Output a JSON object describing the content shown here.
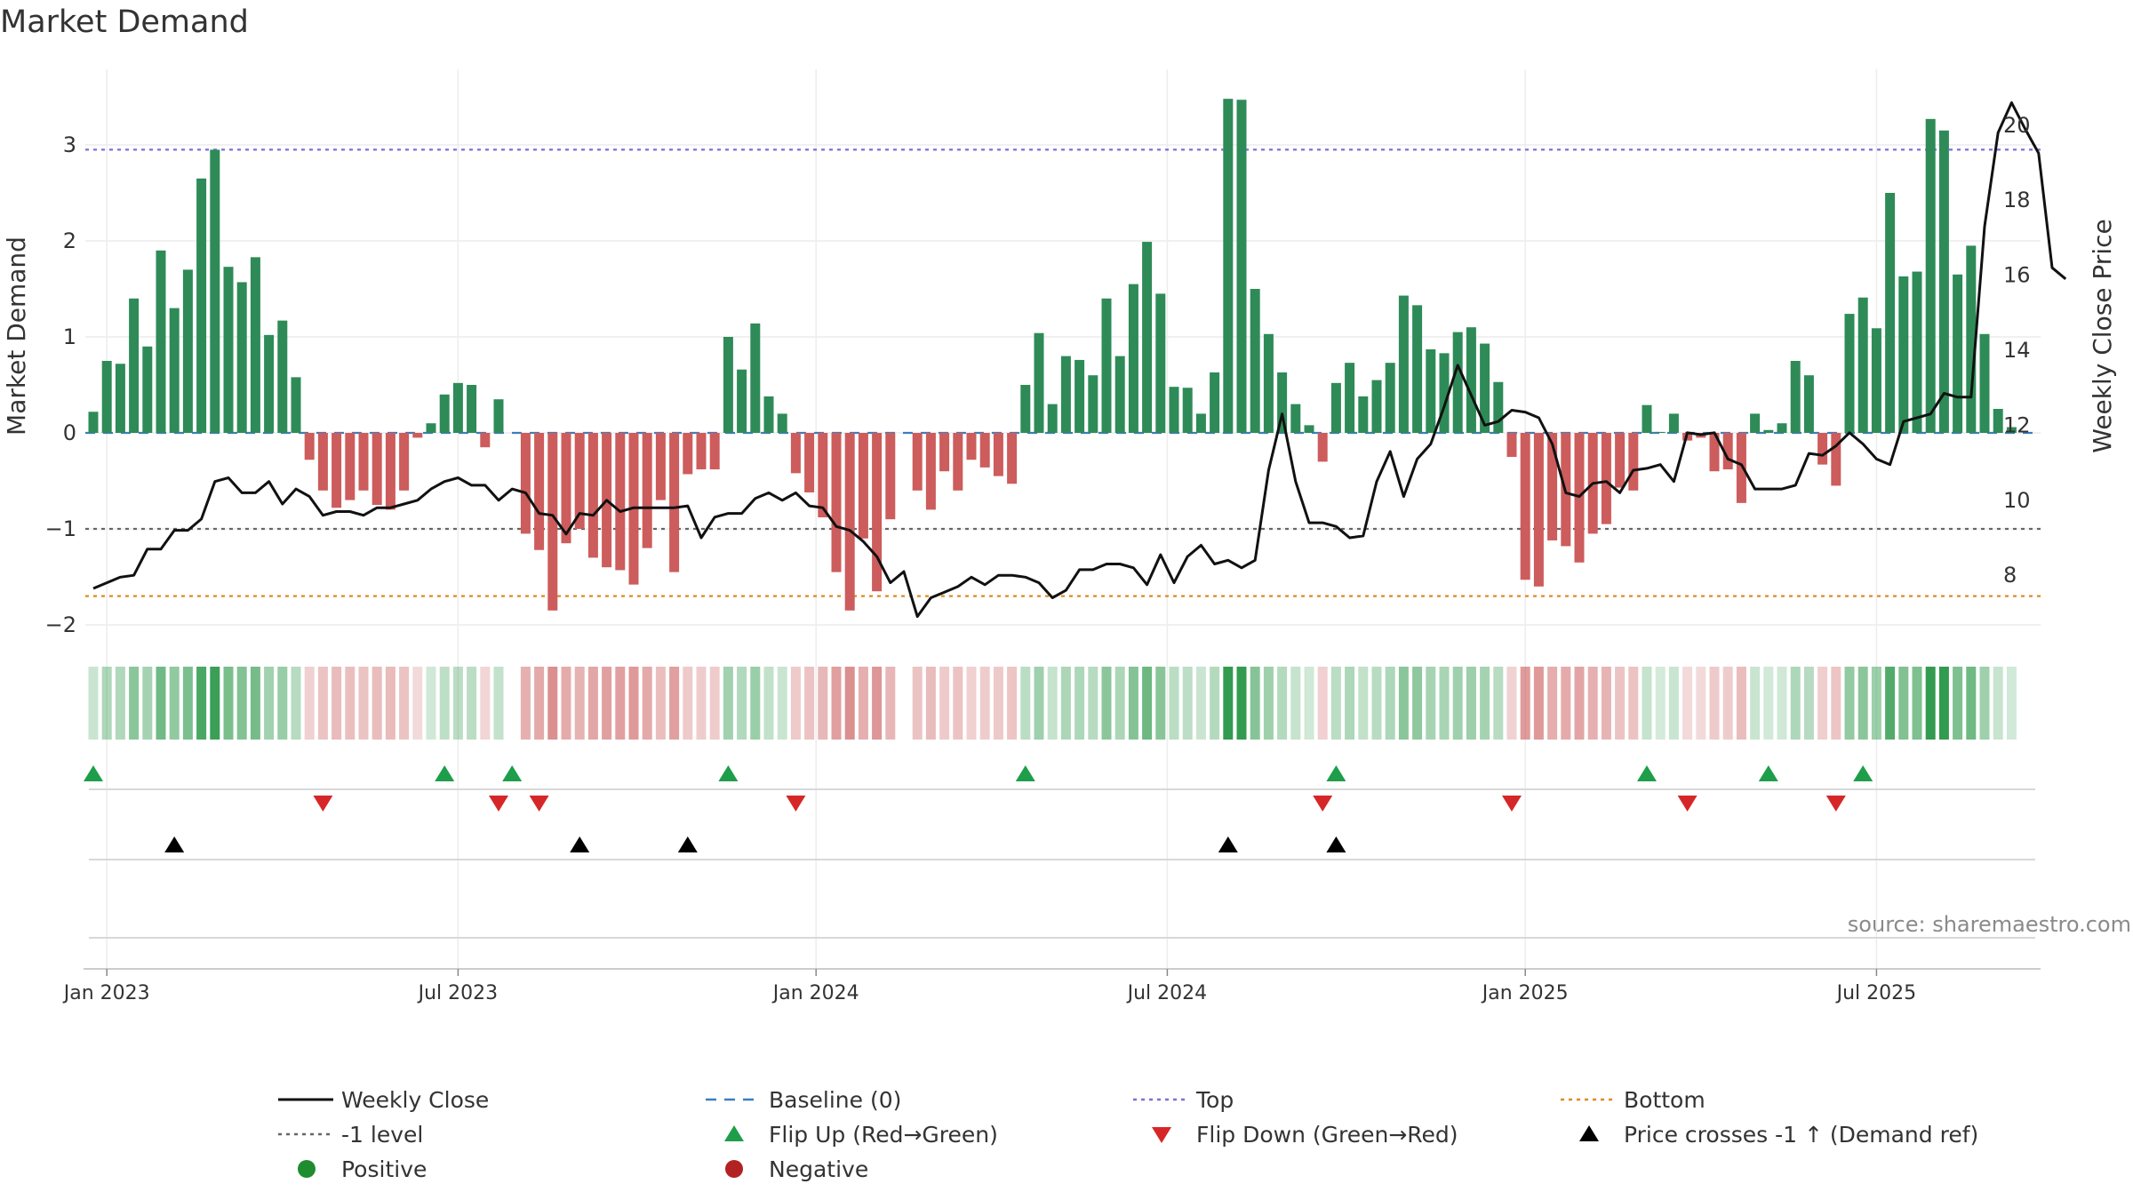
{
  "chart_data": {
    "type": "bar",
    "title": "Market Demand",
    "ylabel": "Market Demand",
    "y2label": "Weekly Close Price",
    "ylim": [
      -2.2,
      3.55
    ],
    "y2lim": [
      6.7,
      21.4
    ],
    "yticks": [
      -2,
      -1,
      0,
      1,
      2,
      3
    ],
    "yticklabels": [
      "−2",
      "−1",
      "0",
      "1",
      "2",
      "3"
    ],
    "y2ticks": [
      8,
      10,
      12,
      14,
      16,
      18,
      20
    ],
    "y2ticklabels": [
      "8",
      "10",
      "12",
      "14",
      "16",
      "18",
      "20"
    ],
    "xticks": [
      {
        "label": "Jan 2023",
        "week": 1
      },
      {
        "label": "Jul 2023",
        "week": 27
      },
      {
        "label": "Jan 2024",
        "week": 53.5
      },
      {
        "label": "Jul 2024",
        "week": 79.5
      },
      {
        "label": "Jan 2025",
        "week": 106
      },
      {
        "label": "Jul 2025",
        "week": 132
      }
    ],
    "reference_lines": {
      "top": 2.95,
      "minus_one_level": -1,
      "bottom": -1.7,
      "baseline": 0
    },
    "series": [
      {
        "name": "Market Demand",
        "values": [
          0.22,
          0.75,
          0.72,
          1.4,
          0.9,
          1.9,
          1.3,
          1.7,
          2.65,
          2.95,
          1.73,
          1.57,
          1.83,
          1.02,
          1.17,
          0.58,
          -0.28,
          -0.6,
          -0.78,
          -0.7,
          -0.6,
          -0.75,
          -0.8,
          -0.6,
          -0.05,
          0.1,
          0.4,
          0.52,
          0.5,
          -0.15,
          0.35,
          0,
          -1.05,
          -1.22,
          -1.85,
          -1.15,
          -1.0,
          -1.3,
          -1.4,
          -1.43,
          -1.58,
          -1.2,
          -0.7,
          -1.45,
          -0.43,
          -0.38,
          -0.38,
          1.0,
          0.66,
          1.14,
          0.38,
          0.2,
          -0.42,
          -0.62,
          -0.88,
          -1.45,
          -1.85,
          -1.1,
          -1.65,
          -0.9,
          0,
          -0.6,
          -0.8,
          -0.4,
          -0.6,
          -0.28,
          -0.36,
          -0.45,
          -0.53,
          0.5,
          1.04,
          0.3,
          0.8,
          0.76,
          0.6,
          1.4,
          0.8,
          1.55,
          1.99,
          1.45,
          0.48,
          0.47,
          0.2,
          0.63,
          3.48,
          3.47,
          1.5,
          1.03,
          0.63,
          0.3,
          0.08,
          -0.3,
          0.52,
          0.73,
          0.38,
          0.55,
          0.73,
          1.43,
          1.33,
          0.87,
          0.83,
          1.05,
          1.1,
          0.93,
          0.53,
          -0.25,
          -1.53,
          -1.6,
          -1.12,
          -1.18,
          -1.35,
          -1.05,
          -0.95,
          -0.57,
          -0.6,
          0.29,
          0.01,
          0.2,
          -0.08,
          -0.05,
          -0.4,
          -0.38,
          -0.73,
          0.2,
          0.03,
          0.1,
          0.75,
          0.6,
          -0.33,
          -0.55,
          1.24,
          1.41,
          1.09,
          2.5,
          1.63,
          1.68,
          3.27,
          3.15,
          1.65,
          1.95,
          1.03,
          0.25,
          0.06
        ]
      },
      {
        "name": "Weekly Close",
        "values": [
          7.65,
          7.8,
          7.95,
          8.0,
          8.7,
          8.7,
          9.2,
          9.2,
          9.5,
          10.5,
          10.6,
          10.2,
          10.2,
          10.5,
          9.9,
          10.3,
          10.1,
          9.6,
          9.7,
          9.7,
          9.6,
          9.8,
          9.8,
          9.9,
          10.0,
          10.3,
          10.5,
          10.6,
          10.4,
          10.4,
          10.0,
          10.3,
          10.2,
          9.65,
          9.6,
          9.1,
          9.65,
          9.6,
          10.0,
          9.7,
          9.8,
          9.8,
          9.8,
          9.8,
          9.85,
          9.0,
          9.55,
          9.65,
          9.65,
          10.05,
          10.2,
          10.0,
          10.2,
          9.85,
          9.8,
          9.3,
          9.2,
          8.9,
          8.5,
          7.8,
          8.1,
          6.9,
          7.4,
          7.55,
          7.7,
          7.95,
          7.75,
          8.0,
          8.0,
          7.95,
          7.8,
          7.4,
          7.6,
          8.15,
          8.15,
          8.3,
          8.3,
          8.2,
          7.75,
          8.55,
          7.8,
          8.5,
          8.8,
          8.3,
          8.4,
          8.2,
          8.4,
          10.8,
          12.3,
          10.5,
          9.4,
          9.4,
          9.3,
          9.0,
          9.05,
          10.5,
          11.3,
          10.1,
          11.1,
          11.5,
          12.5,
          13.6,
          12.8,
          12.0,
          12.1,
          12.4,
          12.35,
          12.2,
          11.5,
          10.2,
          10.1,
          10.45,
          10.5,
          10.2,
          10.8,
          10.85,
          10.95,
          10.5,
          11.8,
          11.75,
          11.8,
          11.1,
          10.95,
          10.3,
          10.3,
          10.3,
          10.4,
          11.25,
          11.2,
          11.45,
          11.8,
          11.5,
          11.1,
          10.95,
          12.1,
          12.2,
          12.3,
          12.85,
          12.75,
          12.75,
          17.3,
          19.8,
          20.6,
          19.9,
          19.25,
          16.2,
          15.9
        ]
      }
    ],
    "band_values": [
      0.22,
      0.75,
      0.72,
      1.4,
      0.9,
      1.9,
      1.3,
      1.7,
      2.65,
      2.95,
      1.73,
      1.57,
      1.83,
      1.02,
      1.17,
      0.58,
      -0.28,
      -0.6,
      -0.78,
      -0.7,
      -0.6,
      -0.75,
      -0.8,
      -0.6,
      -0.05,
      0.1,
      0.4,
      0.52,
      0.5,
      -0.15,
      0.35,
      0,
      -1.05,
      -1.22,
      -1.85,
      -1.15,
      -1.0,
      -1.3,
      -1.4,
      -1.43,
      -1.58,
      -1.2,
      -0.7,
      -1.45,
      -0.43,
      -0.38,
      -0.38,
      1.0,
      0.66,
      1.14,
      0.38,
      0.2,
      -0.42,
      -0.62,
      -0.88,
      -1.45,
      -1.85,
      -1.1,
      -1.65,
      -0.9,
      0,
      -0.6,
      -0.8,
      -0.4,
      -0.6,
      -0.28,
      -0.36,
      -0.45,
      -0.53,
      0.5,
      1.04,
      0.3,
      0.8,
      0.76,
      0.6,
      1.4,
      0.8,
      1.55,
      1.99,
      1.45,
      0.48,
      0.47,
      0.2,
      0.63,
      3.48,
      3.47,
      1.5,
      1.03,
      0.63,
      0.3,
      0.08,
      -0.3,
      0.52,
      0.73,
      0.38,
      0.55,
      0.73,
      1.43,
      1.33,
      0.87,
      0.83,
      1.05,
      1.1,
      0.93,
      0.53,
      -0.25,
      -1.53,
      -1.6,
      -1.12,
      -1.18,
      -1.35,
      -1.05,
      -0.95,
      -0.57,
      -0.6,
      0.29,
      0.01,
      0.2,
      -0.08,
      -0.05,
      -0.4,
      -0.38,
      -0.73,
      0.2,
      0.03,
      0.1,
      0.75,
      0.6,
      -0.33,
      -0.55,
      1.24,
      1.41,
      1.09,
      2.5,
      1.63,
      1.68,
      3.27,
      3.15,
      1.65,
      1.95,
      1.03,
      0.25,
      0.06
    ],
    "flip_up_weeks": [
      0,
      26,
      31,
      47,
      69,
      92,
      115,
      124,
      131
    ],
    "flip_down_weeks": [
      17,
      30,
      33,
      52,
      91,
      105,
      118,
      129
    ],
    "price_cross_weeks": [
      6,
      36,
      44,
      84,
      92
    ],
    "legend": [
      {
        "label": "Weekly Close",
        "marker": "line-solid",
        "color": "#111111"
      },
      {
        "label": "Baseline (0)",
        "marker": "line-dashed",
        "color": "#3a7ebf"
      },
      {
        "label": "Top",
        "marker": "line-dotted",
        "color": "#7b6fdd"
      },
      {
        "label": "Bottom",
        "marker": "line-dotted",
        "color": "#e08a1e"
      },
      {
        "label": "-1 level",
        "marker": "line-dotted",
        "color": "#666666"
      },
      {
        "label": "Flip Up (Red→Green)",
        "marker": "triangle-up",
        "color": "#1e9e4a"
      },
      {
        "label": "Flip Down (Green→Red)",
        "marker": "triangle-down",
        "color": "#d62728"
      },
      {
        "label": "Price crosses -1 ↑ (Demand ref)",
        "marker": "triangle-up",
        "color": "#000000"
      },
      {
        "label": "Positive",
        "marker": "circle",
        "color": "#1f8c2f"
      },
      {
        "label": "Negative",
        "marker": "circle",
        "color": "#b22222"
      }
    ],
    "legend_position": "bottom",
    "source_note": "source: sharemaestro.com",
    "colors": {
      "positive_bar": "#2e8b57",
      "negative_bar": "#cd5c5c",
      "price_line": "#111111",
      "top_line": "#7b6fdd",
      "bottom_line": "#e08a1e",
      "minus_one_line": "#666666",
      "baseline": "#3a7ebf"
    }
  }
}
